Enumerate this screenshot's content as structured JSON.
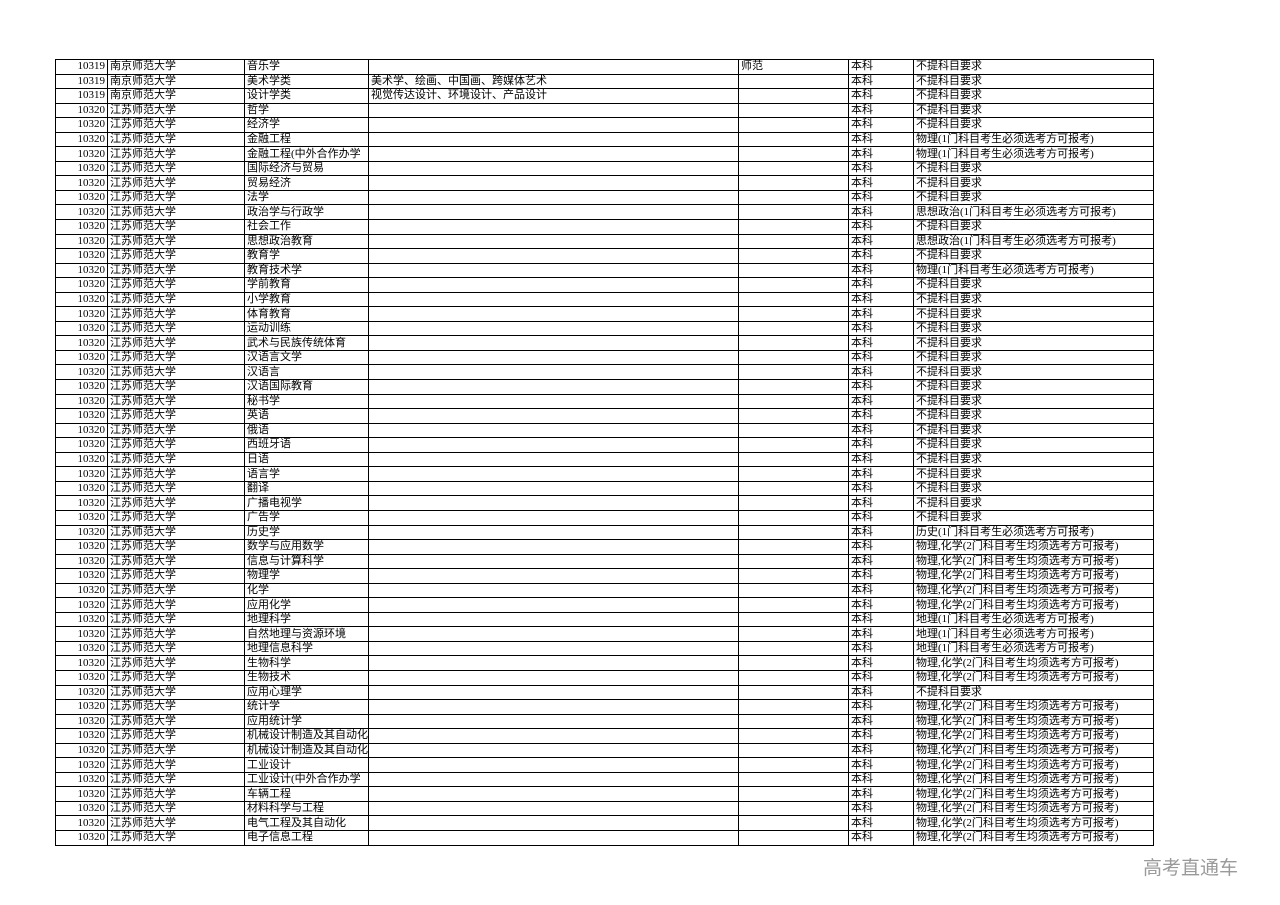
{
  "table": {
    "rows": [
      {
        "code": "10319",
        "school": "南京师范大学",
        "major": "音乐学",
        "type": "师范",
        "level": "本科",
        "requirement": "不提科目要求"
      },
      {
        "code": "10319",
        "school": "南京师范大学",
        "major": "美术学类",
        "detail": "美术学、绘画、中国画、跨媒体艺术",
        "level": "本科",
        "requirement": "不提科目要求"
      },
      {
        "code": "10319",
        "school": "南京师范大学",
        "major": "设计学类",
        "detail": "视觉传达设计、环境设计、产品设计",
        "level": "本科",
        "requirement": "不提科目要求"
      },
      {
        "code": "10320",
        "school": "江苏师范大学",
        "major": "哲学",
        "level": "本科",
        "requirement": "不提科目要求"
      },
      {
        "code": "10320",
        "school": "江苏师范大学",
        "major": "经济学",
        "level": "本科",
        "requirement": "不提科目要求"
      },
      {
        "code": "10320",
        "school": "江苏师范大学",
        "major": "金融工程",
        "level": "本科",
        "requirement": "物理(1门科目考生必须选考方可报考)"
      },
      {
        "code": "10320",
        "school": "江苏师范大学",
        "major": "金融工程(中外合作办学",
        "level": "本科",
        "requirement": "物理(1门科目考生必须选考方可报考)"
      },
      {
        "code": "10320",
        "school": "江苏师范大学",
        "major": "国际经济与贸易",
        "level": "本科",
        "requirement": "不提科目要求"
      },
      {
        "code": "10320",
        "school": "江苏师范大学",
        "major": "贸易经济",
        "level": "本科",
        "requirement": "不提科目要求"
      },
      {
        "code": "10320",
        "school": "江苏师范大学",
        "major": "法学",
        "level": "本科",
        "requirement": "不提科目要求"
      },
      {
        "code": "10320",
        "school": "江苏师范大学",
        "major": "政治学与行政学",
        "level": "本科",
        "requirement": "思想政治(1门科目考生必须选考方可报考)"
      },
      {
        "code": "10320",
        "school": "江苏师范大学",
        "major": "社会工作",
        "level": "本科",
        "requirement": "不提科目要求"
      },
      {
        "code": "10320",
        "school": "江苏师范大学",
        "major": "思想政治教育",
        "level": "本科",
        "requirement": "思想政治(1门科目考生必须选考方可报考)"
      },
      {
        "code": "10320",
        "school": "江苏师范大学",
        "major": "教育学",
        "level": "本科",
        "requirement": "不提科目要求"
      },
      {
        "code": "10320",
        "school": "江苏师范大学",
        "major": "教育技术学",
        "level": "本科",
        "requirement": "物理(1门科目考生必须选考方可报考)"
      },
      {
        "code": "10320",
        "school": "江苏师范大学",
        "major": "学前教育",
        "level": "本科",
        "requirement": "不提科目要求"
      },
      {
        "code": "10320",
        "school": "江苏师范大学",
        "major": "小学教育",
        "level": "本科",
        "requirement": "不提科目要求"
      },
      {
        "code": "10320",
        "school": "江苏师范大学",
        "major": "体育教育",
        "level": "本科",
        "requirement": "不提科目要求"
      },
      {
        "code": "10320",
        "school": "江苏师范大学",
        "major": "运动训练",
        "level": "本科",
        "requirement": "不提科目要求"
      },
      {
        "code": "10320",
        "school": "江苏师范大学",
        "major": "武术与民族传统体育",
        "level": "本科",
        "requirement": "不提科目要求"
      },
      {
        "code": "10320",
        "school": "江苏师范大学",
        "major": "汉语言文学",
        "level": "本科",
        "requirement": "不提科目要求"
      },
      {
        "code": "10320",
        "school": "江苏师范大学",
        "major": "汉语言",
        "level": "本科",
        "requirement": "不提科目要求"
      },
      {
        "code": "10320",
        "school": "江苏师范大学",
        "major": "汉语国际教育",
        "level": "本科",
        "requirement": "不提科目要求"
      },
      {
        "code": "10320",
        "school": "江苏师范大学",
        "major": "秘书学",
        "level": "本科",
        "requirement": "不提科目要求"
      },
      {
        "code": "10320",
        "school": "江苏师范大学",
        "major": "英语",
        "level": "本科",
        "requirement": "不提科目要求"
      },
      {
        "code": "10320",
        "school": "江苏师范大学",
        "major": "俄语",
        "level": "本科",
        "requirement": "不提科目要求"
      },
      {
        "code": "10320",
        "school": "江苏师范大学",
        "major": "西班牙语",
        "level": "本科",
        "requirement": "不提科目要求"
      },
      {
        "code": "10320",
        "school": "江苏师范大学",
        "major": "日语",
        "level": "本科",
        "requirement": "不提科目要求"
      },
      {
        "code": "10320",
        "school": "江苏师范大学",
        "major": "语言学",
        "level": "本科",
        "requirement": "不提科目要求"
      },
      {
        "code": "10320",
        "school": "江苏师范大学",
        "major": "翻译",
        "level": "本科",
        "requirement": "不提科目要求"
      },
      {
        "code": "10320",
        "school": "江苏师范大学",
        "major": "广播电视学",
        "level": "本科",
        "requirement": "不提科目要求"
      },
      {
        "code": "10320",
        "school": "江苏师范大学",
        "major": "广告学",
        "level": "本科",
        "requirement": "不提科目要求"
      },
      {
        "code": "10320",
        "school": "江苏师范大学",
        "major": "历史学",
        "level": "本科",
        "requirement": "历史(1门科目考生必须选考方可报考)"
      },
      {
        "code": "10320",
        "school": "江苏师范大学",
        "major": "数学与应用数学",
        "level": "本科",
        "requirement": "物理,化学(2门科目考生均须选考方可报考)"
      },
      {
        "code": "10320",
        "school": "江苏师范大学",
        "major": "信息与计算科学",
        "level": "本科",
        "requirement": "物理,化学(2门科目考生均须选考方可报考)"
      },
      {
        "code": "10320",
        "school": "江苏师范大学",
        "major": "物理学",
        "level": "本科",
        "requirement": "物理,化学(2门科目考生均须选考方可报考)"
      },
      {
        "code": "10320",
        "school": "江苏师范大学",
        "major": "化学",
        "level": "本科",
        "requirement": "物理,化学(2门科目考生均须选考方可报考)"
      },
      {
        "code": "10320",
        "school": "江苏师范大学",
        "major": "应用化学",
        "level": "本科",
        "requirement": "物理,化学(2门科目考生均须选考方可报考)"
      },
      {
        "code": "10320",
        "school": "江苏师范大学",
        "major": "地理科学",
        "level": "本科",
        "requirement": "地理(1门科目考生必须选考方可报考)"
      },
      {
        "code": "10320",
        "school": "江苏师范大学",
        "major": "自然地理与资源环境",
        "level": "本科",
        "requirement": "地理(1门科目考生必须选考方可报考)"
      },
      {
        "code": "10320",
        "school": "江苏师范大学",
        "major": "地理信息科学",
        "level": "本科",
        "requirement": "地理(1门科目考生必须选考方可报考)"
      },
      {
        "code": "10320",
        "school": "江苏师范大学",
        "major": "生物科学",
        "level": "本科",
        "requirement": "物理,化学(2门科目考生均须选考方可报考)"
      },
      {
        "code": "10320",
        "school": "江苏师范大学",
        "major": "生物技术",
        "level": "本科",
        "requirement": "物理,化学(2门科目考生均须选考方可报考)"
      },
      {
        "code": "10320",
        "school": "江苏师范大学",
        "major": "应用心理学",
        "level": "本科",
        "requirement": "不提科目要求"
      },
      {
        "code": "10320",
        "school": "江苏师范大学",
        "major": "统计学",
        "level": "本科",
        "requirement": "物理,化学(2门科目考生均须选考方可报考)"
      },
      {
        "code": "10320",
        "school": "江苏师范大学",
        "major": "应用统计学",
        "level": "本科",
        "requirement": "物理,化学(2门科目考生均须选考方可报考)"
      },
      {
        "code": "10320",
        "school": "江苏师范大学",
        "major": "机械设计制造及其自动化",
        "level": "本科",
        "requirement": "物理,化学(2门科目考生均须选考方可报考)"
      },
      {
        "code": "10320",
        "school": "江苏师范大学",
        "major": "机械设计制造及其自动化",
        "level": "本科",
        "requirement": "物理,化学(2门科目考生均须选考方可报考)"
      },
      {
        "code": "10320",
        "school": "江苏师范大学",
        "major": "工业设计",
        "level": "本科",
        "requirement": "物理,化学(2门科目考生均须选考方可报考)"
      },
      {
        "code": "10320",
        "school": "江苏师范大学",
        "major": "工业设计(中外合作办学",
        "level": "本科",
        "requirement": "物理,化学(2门科目考生均须选考方可报考)"
      },
      {
        "code": "10320",
        "school": "江苏师范大学",
        "major": "车辆工程",
        "level": "本科",
        "requirement": "物理,化学(2门科目考生均须选考方可报考)"
      },
      {
        "code": "10320",
        "school": "江苏师范大学",
        "major": "材料科学与工程",
        "level": "本科",
        "requirement": "物理,化学(2门科目考生均须选考方可报考)"
      },
      {
        "code": "10320",
        "school": "江苏师范大学",
        "major": "电气工程及其自动化",
        "level": "本科",
        "requirement": "物理,化学(2门科目考生均须选考方可报考)"
      },
      {
        "code": "10320",
        "school": "江苏师范大学",
        "major": "电子信息工程",
        "level": "本科",
        "requirement": "物理,化学(2门科目考生均须选考方可报考)"
      }
    ]
  },
  "watermark": "高考直通车"
}
